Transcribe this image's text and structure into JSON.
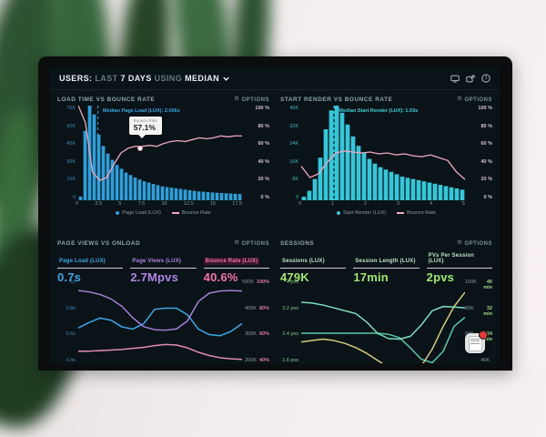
{
  "ui": {
    "options_label": "OPTIONS"
  },
  "header": {
    "seg1": "USERS:",
    "seg2": "LAST",
    "seg3": "7 DAYS",
    "seg4": "USING",
    "seg5": "MEDIAN",
    "icons": [
      "monitor-icon",
      "share-icon",
      "help-icon"
    ]
  },
  "colors": {
    "screen_bg": "#0a1318",
    "bar_blue": "#2f9fd9",
    "bar_teal": "#36c6d9",
    "line_pink": "#efa9bc",
    "accent_blue": "#3aa9e8",
    "accent_purple": "#b184e3",
    "accent_pink": "#f573a8",
    "accent_green": "#9fe870",
    "accent_teal": "#57c9a2",
    "accent_yellow": "#d6c97e"
  },
  "panels": {
    "page_views": {
      "metrics": [
        {
          "label": "Page Load (LUX)",
          "value": "0.7s"
        },
        {
          "label": "Page Views (LUX)",
          "value": "2.7Mpvs"
        },
        {
          "label": "Bounce Rate (LUX)",
          "value": "40.6%"
        }
      ]
    },
    "sessions": {
      "metrics": [
        {
          "label": "Sessions (LUX)",
          "value": "479K"
        },
        {
          "label": "Session Length (LUX)",
          "value": "17min"
        },
        {
          "label": "PVs Per Session (LUX)",
          "value": "2pvs"
        }
      ]
    }
  },
  "chart_data": [
    {
      "id": "load-time-vs-bounce-rate",
      "type": "bar",
      "title": "LOAD TIME VS BOUNCE RATE",
      "series_name": "Page Load (LUX)",
      "line_name": "Bounce Rate",
      "x_ticks": [
        "0",
        "2.5",
        "5",
        "7.5",
        "10",
        "12.5",
        "15",
        "17.5"
      ],
      "y_left_ticks": [
        "75K",
        "60K",
        "45K",
        "30K",
        "15K",
        "0"
      ],
      "y_right_ticks": [
        "100 %",
        "80 %",
        "60 %",
        "40 %",
        "20 %",
        "0 %"
      ],
      "y_left_max": 75,
      "bar_values_k": [
        3,
        55,
        75,
        68,
        52,
        43,
        37,
        32,
        28,
        25,
        22,
        20,
        18,
        16.5,
        15,
        14,
        13,
        12,
        11,
        10.5,
        10,
        9.5,
        9,
        8.5,
        8,
        7.5,
        7,
        6.8,
        6.5,
        6.2,
        6,
        5.8,
        5.6,
        5.4,
        5.2,
        5
      ],
      "bounce_line_pct": [
        100,
        82,
        30,
        21,
        24,
        38,
        50,
        55,
        57,
        57,
        58,
        57,
        60,
        62,
        63,
        62,
        64,
        66,
        65,
        66,
        68,
        67,
        68,
        68
      ],
      "median": {
        "label": "Median Page Load (LUX): 2.056s",
        "x_pct": 12
      },
      "tooltip": {
        "label": "Bounce Rate",
        "value": "57.1%"
      },
      "colors": {
        "bar": "#2f9fd9",
        "line": "#efa9bc",
        "median": "#39a8e8"
      }
    },
    {
      "id": "start-render-vs-bounce-rate",
      "type": "bar",
      "title": "START RENDER VS BOUNCE RATE",
      "series_name": "Start Render (LUX)",
      "line_name": "Bounce Rate",
      "x_ticks": [
        "0",
        "1",
        "2",
        "3",
        "4",
        "5"
      ],
      "y_left_ticks": [
        "40K",
        "32K",
        "24K",
        "16K",
        "8K",
        "0"
      ],
      "y_right_ticks": [
        "100 %",
        "80 %",
        "60 %",
        "40 %",
        "20 %",
        "0 %"
      ],
      "y_left_max": 40,
      "bar_values_k": [
        1.5,
        4,
        9,
        18,
        30,
        38,
        40,
        37,
        32,
        27,
        23,
        20,
        17.5,
        15.5,
        14,
        13,
        12,
        11,
        10,
        9.5,
        9,
        8.5,
        8,
        7.5,
        7,
        6.5,
        6,
        5.5,
        5,
        4.5
      ],
      "bounce_line_pct": [
        36,
        24,
        28,
        40,
        50,
        52,
        51,
        50,
        51,
        49,
        50,
        48,
        49,
        47,
        46,
        48,
        45,
        42,
        30,
        22
      ],
      "median": {
        "label": "Median Start Render (LUX): 1.03s",
        "x_pct": 20
      },
      "colors": {
        "bar": "#36c6d9",
        "line": "#efa9bc",
        "median": "#3fd4d8"
      }
    },
    {
      "id": "page-views-vs-onload",
      "type": "line",
      "title": "PAGE VIEWS VS ONLOAD",
      "y_left_ticks": [
        "1s",
        "0.8s",
        "0.6s",
        "0.4s"
      ],
      "y_right_ticks": [
        [
          "500K",
          "100%"
        ],
        [
          "400K",
          "80%"
        ],
        [
          "300K",
          "60%"
        ],
        [
          "200K",
          "40%"
        ]
      ],
      "window": [
        0.3,
        1.06
      ],
      "series": [
        {
          "name": "Page Load (LUX)",
          "unit": "s",
          "divisor": 1,
          "color": "#3aa9e8",
          "values": [
            0.62,
            0.67,
            0.71,
            0.69,
            0.63,
            0.61,
            0.66,
            0.79,
            0.8,
            0.8,
            0.74,
            0.61,
            0.56,
            0.55,
            0.59,
            0.66
          ]
        },
        {
          "name": "Page Views (LUX)",
          "unit": "K",
          "divisor": 500,
          "color": "#a87fd8",
          "values": [
            480,
            474,
            462,
            442,
            408,
            356,
            316,
            302,
            300,
            306,
            342,
            430,
            468,
            478,
            480,
            478
          ]
        },
        {
          "name": "Bounce Rate (LUX)",
          "unit": "%",
          "divisor": 100,
          "color": "#e38ca8",
          "values": [
            41,
            41,
            41.5,
            42,
            42.5,
            43.5,
            44.5,
            46,
            47,
            46.5,
            44,
            40,
            37,
            35,
            34,
            33.5
          ]
        }
      ]
    },
    {
      "id": "sessions",
      "type": "line",
      "title": "SESSIONS",
      "y_left_ticks": [
        "4 pvs",
        "3.2 pvs",
        "2.4 pvs",
        "1.6 pvs"
      ],
      "y_right_ticks": [
        [
          "100K",
          "40 min"
        ],
        [
          "80K",
          "32 min"
        ],
        [
          "60K",
          "24 min"
        ],
        [
          "40K",
          ""
        ]
      ],
      "window": [
        1.1,
        4.05
      ],
      "series": [
        {
          "name": "Sessions (LUX)",
          "unit": "K",
          "divisor": 25,
          "color": "#57c9a2",
          "values": [
            54,
            54,
            54,
            54,
            54,
            54,
            54,
            54,
            53,
            50,
            41,
            31,
            28,
            38,
            60,
            68
          ]
        },
        {
          "name": "Session Length (LUX)",
          "unit": "min",
          "divisor": 10,
          "color": "#d6c97e",
          "values": [
            18.5,
            19,
            19.5,
            19,
            18,
            16.5,
            14.5,
            12,
            9.5,
            7.5,
            7,
            10,
            16,
            24,
            31,
            36
          ]
        },
        {
          "name": "PVs Per Session (LUX)",
          "unit": "pvs",
          "divisor": 1,
          "color": "#7fe0c0",
          "values": [
            3.25,
            3.22,
            3.15,
            3.05,
            2.95,
            2.85,
            2.55,
            2.15,
            1.97,
            1.95,
            2.05,
            2.45,
            2.95,
            3.1,
            3.08,
            3.05
          ]
        }
      ]
    }
  ]
}
